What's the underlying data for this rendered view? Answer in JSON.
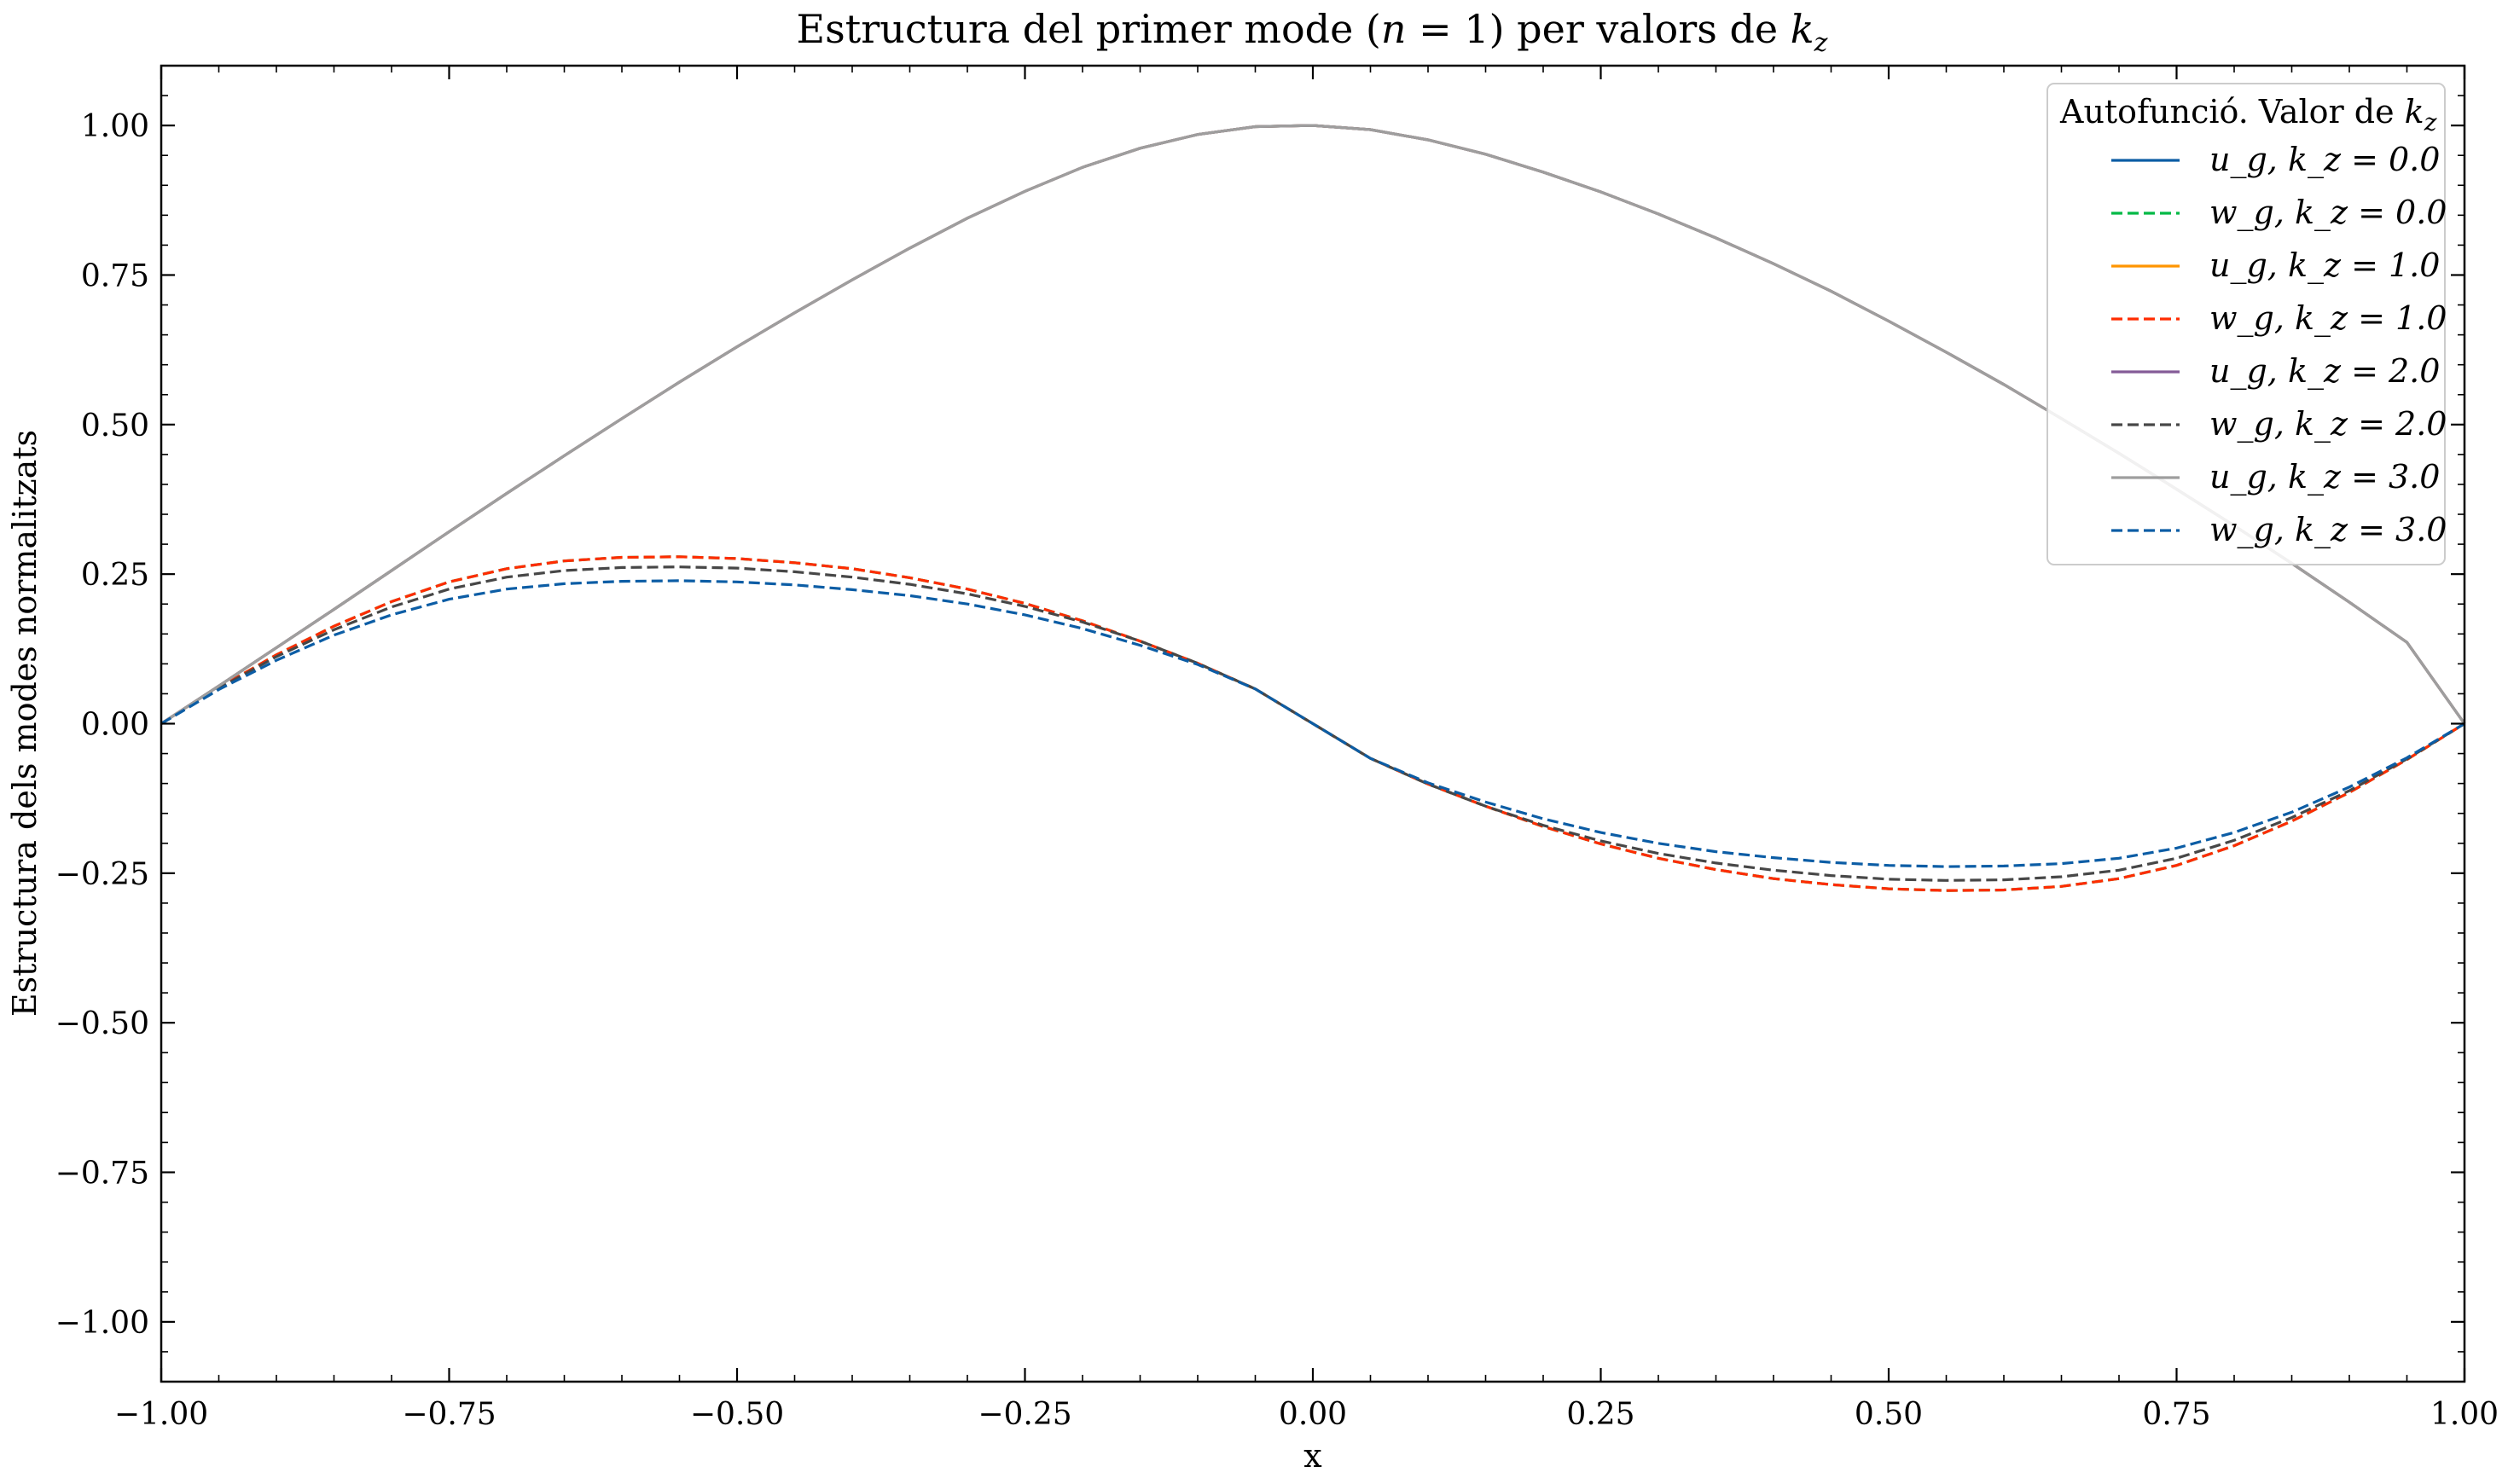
{
  "chart_data": {
    "type": "line",
    "title": "Estructura del primer mode (n = 1) per valors de k_z",
    "xlabel": "x",
    "ylabel": "Estructura dels modes normalitzats",
    "xlim": [
      -1.0,
      1.0
    ],
    "ylim": [
      -1.1,
      1.1
    ],
    "xticks": [
      -1.0,
      -0.75,
      -0.5,
      -0.25,
      0.0,
      0.25,
      0.5,
      0.75,
      1.0
    ],
    "xtick_labels": [
      "−1.00",
      "−0.75",
      "−0.50",
      "−0.25",
      "0.00",
      "0.25",
      "0.50",
      "0.75",
      "1.00"
    ],
    "yticks": [
      1.0,
      0.75,
      0.5,
      0.25,
      0.0,
      -0.25,
      -0.5,
      -0.75,
      -1.0
    ],
    "ytick_labels": [
      "1.00",
      "0.75",
      "0.50",
      "0.25",
      "0.00",
      "−0.25",
      "−0.50",
      "−0.75",
      "−1.00"
    ],
    "grid": false,
    "legend": {
      "title": "Autofunció. Valor de k_z",
      "placement": "top-right"
    },
    "x": [
      -1.0,
      -0.95,
      -0.9,
      -0.85,
      -0.8,
      -0.75,
      -0.7,
      -0.65,
      -0.6,
      -0.55,
      -0.5,
      -0.45,
      -0.4,
      -0.35,
      -0.3,
      -0.25,
      -0.2,
      -0.15,
      -0.1,
      -0.05,
      0.0,
      0.05,
      0.1,
      0.15,
      0.2,
      0.25,
      0.3,
      0.35,
      0.4,
      0.45,
      0.5,
      0.55,
      0.6,
      0.65,
      0.7,
      0.75,
      0.8,
      0.85,
      0.9,
      0.95,
      1.0
    ],
    "series": [
      {
        "name": "u_g, k_z = 0.0",
        "color": "#0C5DA5",
        "dash": "solid",
        "values": [
          0.0,
          0.063,
          0.127,
          0.191,
          0.256,
          0.321,
          0.385,
          0.448,
          0.51,
          0.571,
          0.63,
          0.687,
          0.742,
          0.795,
          0.845,
          0.89,
          0.93,
          0.962,
          0.985,
          0.998,
          1.0,
          0.993,
          0.976,
          0.952,
          0.922,
          0.889,
          0.852,
          0.812,
          0.769,
          0.723,
          0.673,
          0.621,
          0.567,
          0.51,
          0.452,
          0.392,
          0.331,
          0.268,
          0.203,
          0.136,
          0.0
        ]
      },
      {
        "name": "w_g, k_z = 0.0",
        "color": "#00B945",
        "dash": "dashed",
        "values": [
          0.0,
          0.06,
          0.115,
          0.163,
          0.204,
          0.237,
          0.259,
          0.272,
          0.278,
          0.279,
          0.276,
          0.269,
          0.259,
          0.244,
          0.225,
          0.201,
          0.172,
          0.138,
          0.101,
          0.058,
          0.0,
          -0.058,
          -0.101,
          -0.138,
          -0.172,
          -0.201,
          -0.225,
          -0.244,
          -0.259,
          -0.269,
          -0.276,
          -0.279,
          -0.278,
          -0.272,
          -0.259,
          -0.237,
          -0.204,
          -0.163,
          -0.115,
          -0.06,
          0.0
        ]
      },
      {
        "name": "u_g, k_z = 1.0",
        "color": "#FF9500",
        "dash": "solid",
        "values": [
          0.0,
          0.063,
          0.127,
          0.191,
          0.256,
          0.321,
          0.385,
          0.448,
          0.51,
          0.571,
          0.63,
          0.687,
          0.742,
          0.795,
          0.845,
          0.89,
          0.93,
          0.962,
          0.985,
          0.998,
          1.0,
          0.993,
          0.976,
          0.952,
          0.922,
          0.889,
          0.852,
          0.812,
          0.769,
          0.723,
          0.673,
          0.621,
          0.567,
          0.51,
          0.452,
          0.392,
          0.331,
          0.268,
          0.203,
          0.136,
          0.0
        ]
      },
      {
        "name": "w_g, k_z = 1.0",
        "color": "#FF2C00",
        "dash": "dashed",
        "values": [
          0.0,
          0.06,
          0.115,
          0.163,
          0.204,
          0.237,
          0.259,
          0.272,
          0.278,
          0.279,
          0.276,
          0.269,
          0.259,
          0.244,
          0.225,
          0.201,
          0.172,
          0.138,
          0.101,
          0.058,
          0.0,
          -0.058,
          -0.101,
          -0.138,
          -0.172,
          -0.201,
          -0.225,
          -0.244,
          -0.259,
          -0.269,
          -0.276,
          -0.279,
          -0.278,
          -0.272,
          -0.259,
          -0.237,
          -0.204,
          -0.163,
          -0.115,
          -0.06,
          0.0
        ]
      },
      {
        "name": "u_g, k_z = 2.0",
        "color": "#845B97",
        "dash": "solid",
        "values": [
          0.0,
          0.063,
          0.127,
          0.191,
          0.256,
          0.321,
          0.385,
          0.448,
          0.51,
          0.571,
          0.63,
          0.687,
          0.742,
          0.795,
          0.845,
          0.89,
          0.93,
          0.962,
          0.985,
          0.998,
          1.0,
          0.993,
          0.976,
          0.952,
          0.922,
          0.889,
          0.852,
          0.812,
          0.769,
          0.723,
          0.673,
          0.621,
          0.567,
          0.51,
          0.452,
          0.392,
          0.331,
          0.268,
          0.203,
          0.136,
          0.0
        ]
      },
      {
        "name": "w_g, k_z = 2.0",
        "color": "#474747",
        "dash": "dashed",
        "values": [
          0.0,
          0.059,
          0.112,
          0.157,
          0.195,
          0.225,
          0.245,
          0.256,
          0.261,
          0.262,
          0.26,
          0.254,
          0.245,
          0.233,
          0.217,
          0.196,
          0.17,
          0.138,
          0.101,
          0.058,
          0.0,
          -0.058,
          -0.101,
          -0.138,
          -0.17,
          -0.196,
          -0.217,
          -0.233,
          -0.245,
          -0.254,
          -0.26,
          -0.262,
          -0.261,
          -0.256,
          -0.245,
          -0.225,
          -0.195,
          -0.157,
          -0.112,
          -0.059,
          0.0
        ]
      },
      {
        "name": "u_g, k_z = 3.0",
        "color": "#9E9E9E",
        "dash": "solid",
        "values": [
          0.0,
          0.063,
          0.127,
          0.191,
          0.256,
          0.321,
          0.385,
          0.448,
          0.51,
          0.571,
          0.63,
          0.687,
          0.742,
          0.795,
          0.845,
          0.89,
          0.93,
          0.962,
          0.985,
          0.998,
          1.0,
          0.993,
          0.976,
          0.952,
          0.922,
          0.889,
          0.852,
          0.812,
          0.769,
          0.723,
          0.673,
          0.621,
          0.567,
          0.51,
          0.452,
          0.392,
          0.331,
          0.268,
          0.203,
          0.136,
          0.0
        ]
      },
      {
        "name": "w_g, k_z = 3.0",
        "color": "#0C5DA5",
        "dash": "dashed",
        "values": [
          0.0,
          0.057,
          0.106,
          0.148,
          0.182,
          0.208,
          0.225,
          0.234,
          0.238,
          0.239,
          0.237,
          0.232,
          0.224,
          0.214,
          0.2,
          0.182,
          0.159,
          0.131,
          0.099,
          0.058,
          0.0,
          -0.058,
          -0.099,
          -0.131,
          -0.159,
          -0.182,
          -0.2,
          -0.214,
          -0.224,
          -0.232,
          -0.237,
          -0.239,
          -0.238,
          -0.234,
          -0.225,
          -0.208,
          -0.182,
          -0.148,
          -0.106,
          -0.057,
          0.0
        ]
      }
    ]
  }
}
